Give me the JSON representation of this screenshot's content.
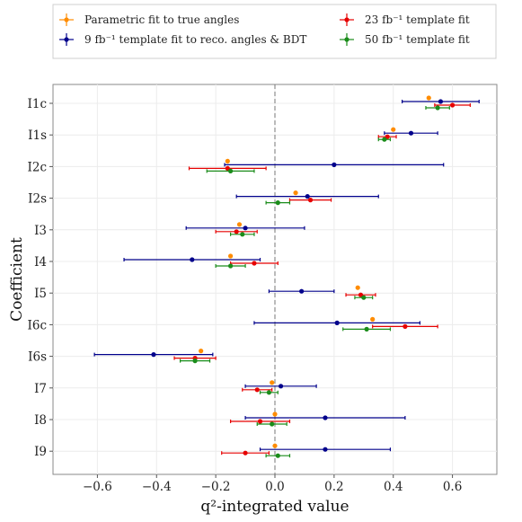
{
  "chart_data": {
    "type": "scatter",
    "orientation": "horizontal-errorbar",
    "xlabel": "q²-integrated value",
    "ylabel": "Coefficient",
    "xlim": [
      -0.75,
      0.75
    ],
    "x_ticks": [
      "−0.6",
      "−0.4",
      "−0.2",
      "0.0",
      "0.2",
      "0.4",
      "0.6"
    ],
    "x_tick_values": [
      -0.6,
      -0.4,
      -0.2,
      0.0,
      0.2,
      0.4,
      0.6
    ],
    "reference_line_x": 0.0,
    "grid": true,
    "legend_position": "top, outside plot, 2 columns",
    "categories": [
      "I1c",
      "I1s",
      "I2c",
      "I2s",
      "I3",
      "I4",
      "I5",
      "I6c",
      "I6s",
      "I7",
      "I8",
      "I9"
    ],
    "series": [
      {
        "name": "Parametric fit to true angles",
        "color": "#ff8c00",
        "values": [
          0.52,
          0.4,
          -0.16,
          0.07,
          -0.12,
          -0.15,
          0.28,
          0.33,
          -0.25,
          -0.01,
          0.0,
          0.0
        ],
        "errors": [
          0,
          0,
          0,
          0,
          0,
          0,
          0,
          0,
          0,
          0,
          0,
          0
        ]
      },
      {
        "name": "9 fb⁻¹ template fit to reco. angles & BDT",
        "color": "#00008b",
        "values": [
          0.56,
          0.46,
          0.2,
          0.11,
          -0.1,
          -0.28,
          0.09,
          0.21,
          -0.41,
          0.02,
          0.17,
          0.17
        ],
        "errors": [
          0.13,
          0.09,
          0.37,
          0.24,
          0.2,
          0.23,
          0.11,
          0.28,
          0.2,
          0.12,
          0.27,
          0.22
        ]
      },
      {
        "name": "23 fb⁻¹ template fit",
        "color": "#e60000",
        "values": [
          0.6,
          0.38,
          -0.16,
          0.12,
          -0.13,
          -0.07,
          0.29,
          0.44,
          -0.27,
          -0.06,
          -0.05,
          -0.1
        ],
        "errors": [
          0.06,
          0.03,
          0.13,
          0.07,
          0.07,
          0.08,
          0.05,
          0.11,
          0.07,
          0.05,
          0.1,
          0.08
        ]
      },
      {
        "name": "50 fb⁻¹ template fit",
        "color": "#1a8c1a",
        "values": [
          0.55,
          0.37,
          -0.15,
          0.01,
          -0.11,
          -0.15,
          0.3,
          0.31,
          -0.27,
          -0.02,
          -0.01,
          0.01
        ],
        "errors": [
          0.04,
          0.02,
          0.08,
          0.04,
          0.04,
          0.05,
          0.03,
          0.08,
          0.05,
          0.03,
          0.05,
          0.04
        ]
      }
    ]
  }
}
